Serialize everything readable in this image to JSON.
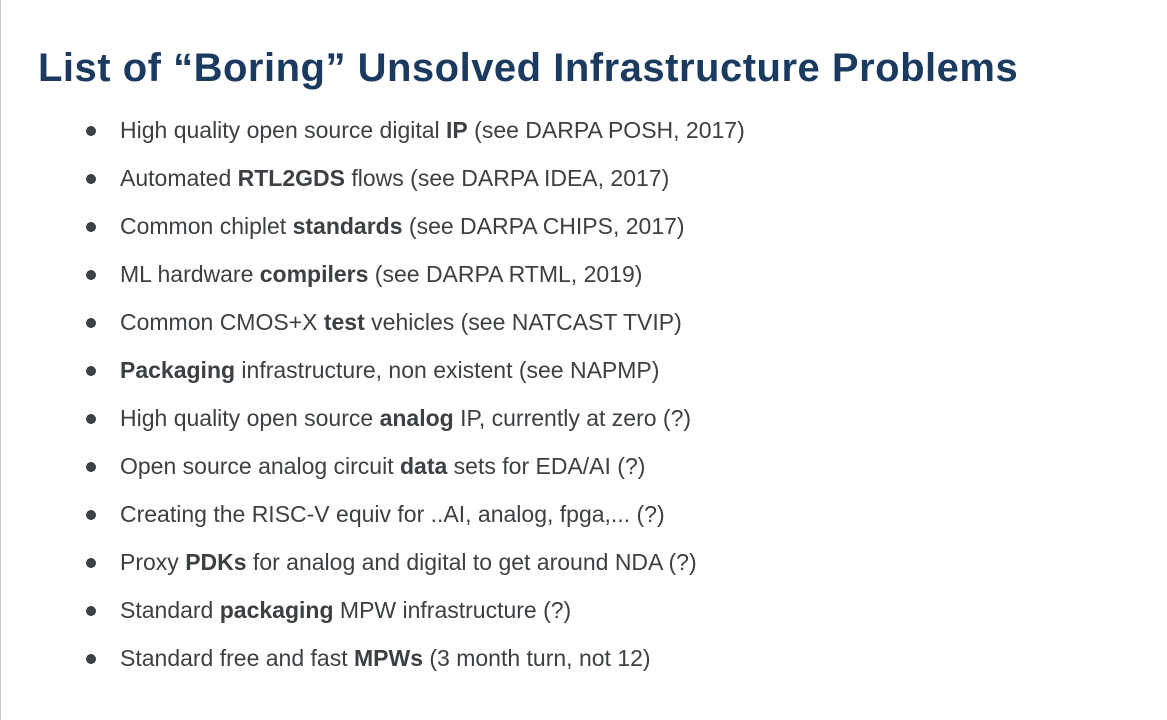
{
  "slide": {
    "title": "List of “Boring” Unsolved Infrastructure Problems",
    "bullets": [
      [
        {
          "text": "High quality open source digital ",
          "bold": false
        },
        {
          "text": "IP",
          "bold": true
        },
        {
          "text": " (see DARPA POSH, 2017)",
          "bold": false
        }
      ],
      [
        {
          "text": "Automated ",
          "bold": false
        },
        {
          "text": "RTL2GDS",
          "bold": true
        },
        {
          "text": " flows (see DARPA IDEA, 2017)",
          "bold": false
        }
      ],
      [
        {
          "text": "Common chiplet ",
          "bold": false
        },
        {
          "text": "standards",
          "bold": true
        },
        {
          "text": " (see DARPA CHIPS, 2017)",
          "bold": false
        }
      ],
      [
        {
          "text": "ML hardware ",
          "bold": false
        },
        {
          "text": "compilers",
          "bold": true
        },
        {
          "text": " (see DARPA RTML, 2019)",
          "bold": false
        }
      ],
      [
        {
          "text": "Common CMOS+X ",
          "bold": false
        },
        {
          "text": "test",
          "bold": true
        },
        {
          "text": " vehicles (see NATCAST TVIP)",
          "bold": false
        }
      ],
      [
        {
          "text": "Packaging",
          "bold": true
        },
        {
          "text": " infrastructure, non existent (see NAPMP)",
          "bold": false
        }
      ],
      [
        {
          "text": "High quality open source ",
          "bold": false
        },
        {
          "text": "analog",
          "bold": true
        },
        {
          "text": " IP, currently at zero (?)",
          "bold": false
        }
      ],
      [
        {
          "text": "Open source analog circuit ",
          "bold": false
        },
        {
          "text": "data",
          "bold": true
        },
        {
          "text": " sets for EDA/AI (?)",
          "bold": false
        }
      ],
      [
        {
          "text": "Creating the RISC-V equiv for ..AI, analog, fpga,... (?)",
          "bold": false
        }
      ],
      [
        {
          "text": "Proxy ",
          "bold": false
        },
        {
          "text": "PDKs",
          "bold": true
        },
        {
          "text": " for analog and digital to get around NDA (?)",
          "bold": false
        }
      ],
      [
        {
          "text": "Standard ",
          "bold": false
        },
        {
          "text": "packaging",
          "bold": true
        },
        {
          "text": " MPW infrastructure (?)",
          "bold": false
        }
      ],
      [
        {
          "text": "Standard free and fast ",
          "bold": false
        },
        {
          "text": "MPWs",
          "bold": true
        },
        {
          "text": " (3 month turn, not 12)",
          "bold": false
        }
      ]
    ]
  },
  "colors": {
    "title_text": "#1b3a5f",
    "body_text": "#3c4043",
    "bullet_dot": "#3c4043",
    "left_border": "#c4c4c4",
    "background": "#ffffff"
  }
}
